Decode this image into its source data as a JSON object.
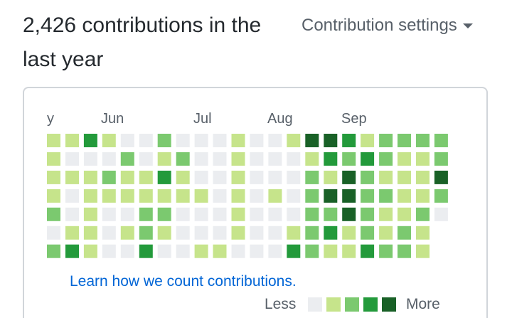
{
  "header": {
    "title": "2,426 contributions in the last year",
    "settings_label": "Contribution settings",
    "caret_icon": "caret-down-icon"
  },
  "months": [
    {
      "label": "y"
    },
    {
      "label": "Jun"
    },
    {
      "label": "Jul"
    },
    {
      "label": "Aug"
    },
    {
      "label": "Sep"
    }
  ],
  "colors": {
    "level0": "#ebedf0",
    "level1": "#c6e48b",
    "level2": "#7bc96f",
    "level3": "#239a3b",
    "level4": "#196127"
  },
  "grid": {
    "rows": 7,
    "columns": 22,
    "levels": [
      [
        1,
        1,
        3,
        1,
        0,
        0,
        2,
        0,
        0,
        0,
        1,
        0,
        0,
        1,
        4,
        4,
        3,
        1,
        2,
        2,
        2,
        2
      ],
      [
        1,
        0,
        0,
        0,
        2,
        0,
        1,
        2,
        0,
        0,
        1,
        0,
        0,
        0,
        1,
        3,
        2,
        3,
        2,
        1,
        1,
        2
      ],
      [
        1,
        1,
        1,
        2,
        1,
        1,
        3,
        1,
        0,
        0,
        1,
        0,
        0,
        0,
        2,
        1,
        4,
        2,
        1,
        1,
        1,
        4
      ],
      [
        1,
        0,
        1,
        1,
        1,
        1,
        1,
        1,
        1,
        0,
        1,
        0,
        1,
        0,
        2,
        4,
        4,
        2,
        2,
        1,
        1,
        2
      ],
      [
        2,
        0,
        1,
        0,
        0,
        2,
        2,
        0,
        0,
        0,
        1,
        0,
        0,
        0,
        2,
        2,
        4,
        2,
        1,
        1,
        2,
        0
      ],
      [
        0,
        1,
        1,
        0,
        1,
        2,
        1,
        0,
        0,
        0,
        1,
        0,
        0,
        1,
        2,
        3,
        1,
        2,
        1,
        2,
        1,
        -1
      ],
      [
        2,
        3,
        1,
        0,
        0,
        3,
        0,
        0,
        1,
        1,
        0,
        0,
        0,
        3,
        2,
        1,
        1,
        3,
        2,
        2,
        1,
        -1
      ]
    ]
  },
  "footer": {
    "learn_link": "Learn how we count contributions.",
    "less_label": "Less",
    "more_label": "More"
  }
}
